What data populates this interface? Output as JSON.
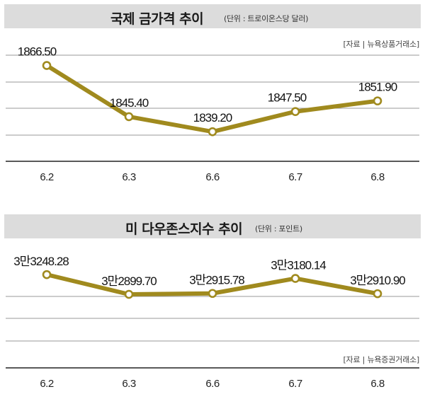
{
  "chart_data": [
    {
      "type": "line",
      "title": "국제 금가격 추이",
      "unit_note": "(단위 : 트로이온스당 달러)",
      "source": "[자료 | 뉴욕상품거래소]",
      "categories": [
        "6.2",
        "6.3",
        "6.6",
        "6.7",
        "6.8"
      ],
      "values": [
        1866.5,
        1845.4,
        1839.2,
        1847.5,
        1851.9
      ],
      "data_labels": [
        "1866.50",
        "1845.40",
        "1839.20",
        "1847.50",
        "1851.90"
      ],
      "ylim": [
        1827,
        1876
      ],
      "grid": true,
      "color": "#a08a1e"
    },
    {
      "type": "line",
      "title": "미 다우존스지수 추이",
      "unit_note": "(단위 : 포인트)",
      "source": "[자료 | 뉴욕증권거래소]",
      "categories": [
        "6.2",
        "6.3",
        "6.6",
        "6.7",
        "6.8"
      ],
      "values": [
        33248.28,
        32899.7,
        32915.78,
        33180.14,
        32910.9
      ],
      "data_labels": [
        "3만3248.28",
        "3만2899.70",
        "3만2915.78",
        "3만3180.14",
        "3만2910.90"
      ],
      "ylim": [
        31600,
        33600
      ],
      "grid": true,
      "color": "#a08a1e"
    }
  ]
}
